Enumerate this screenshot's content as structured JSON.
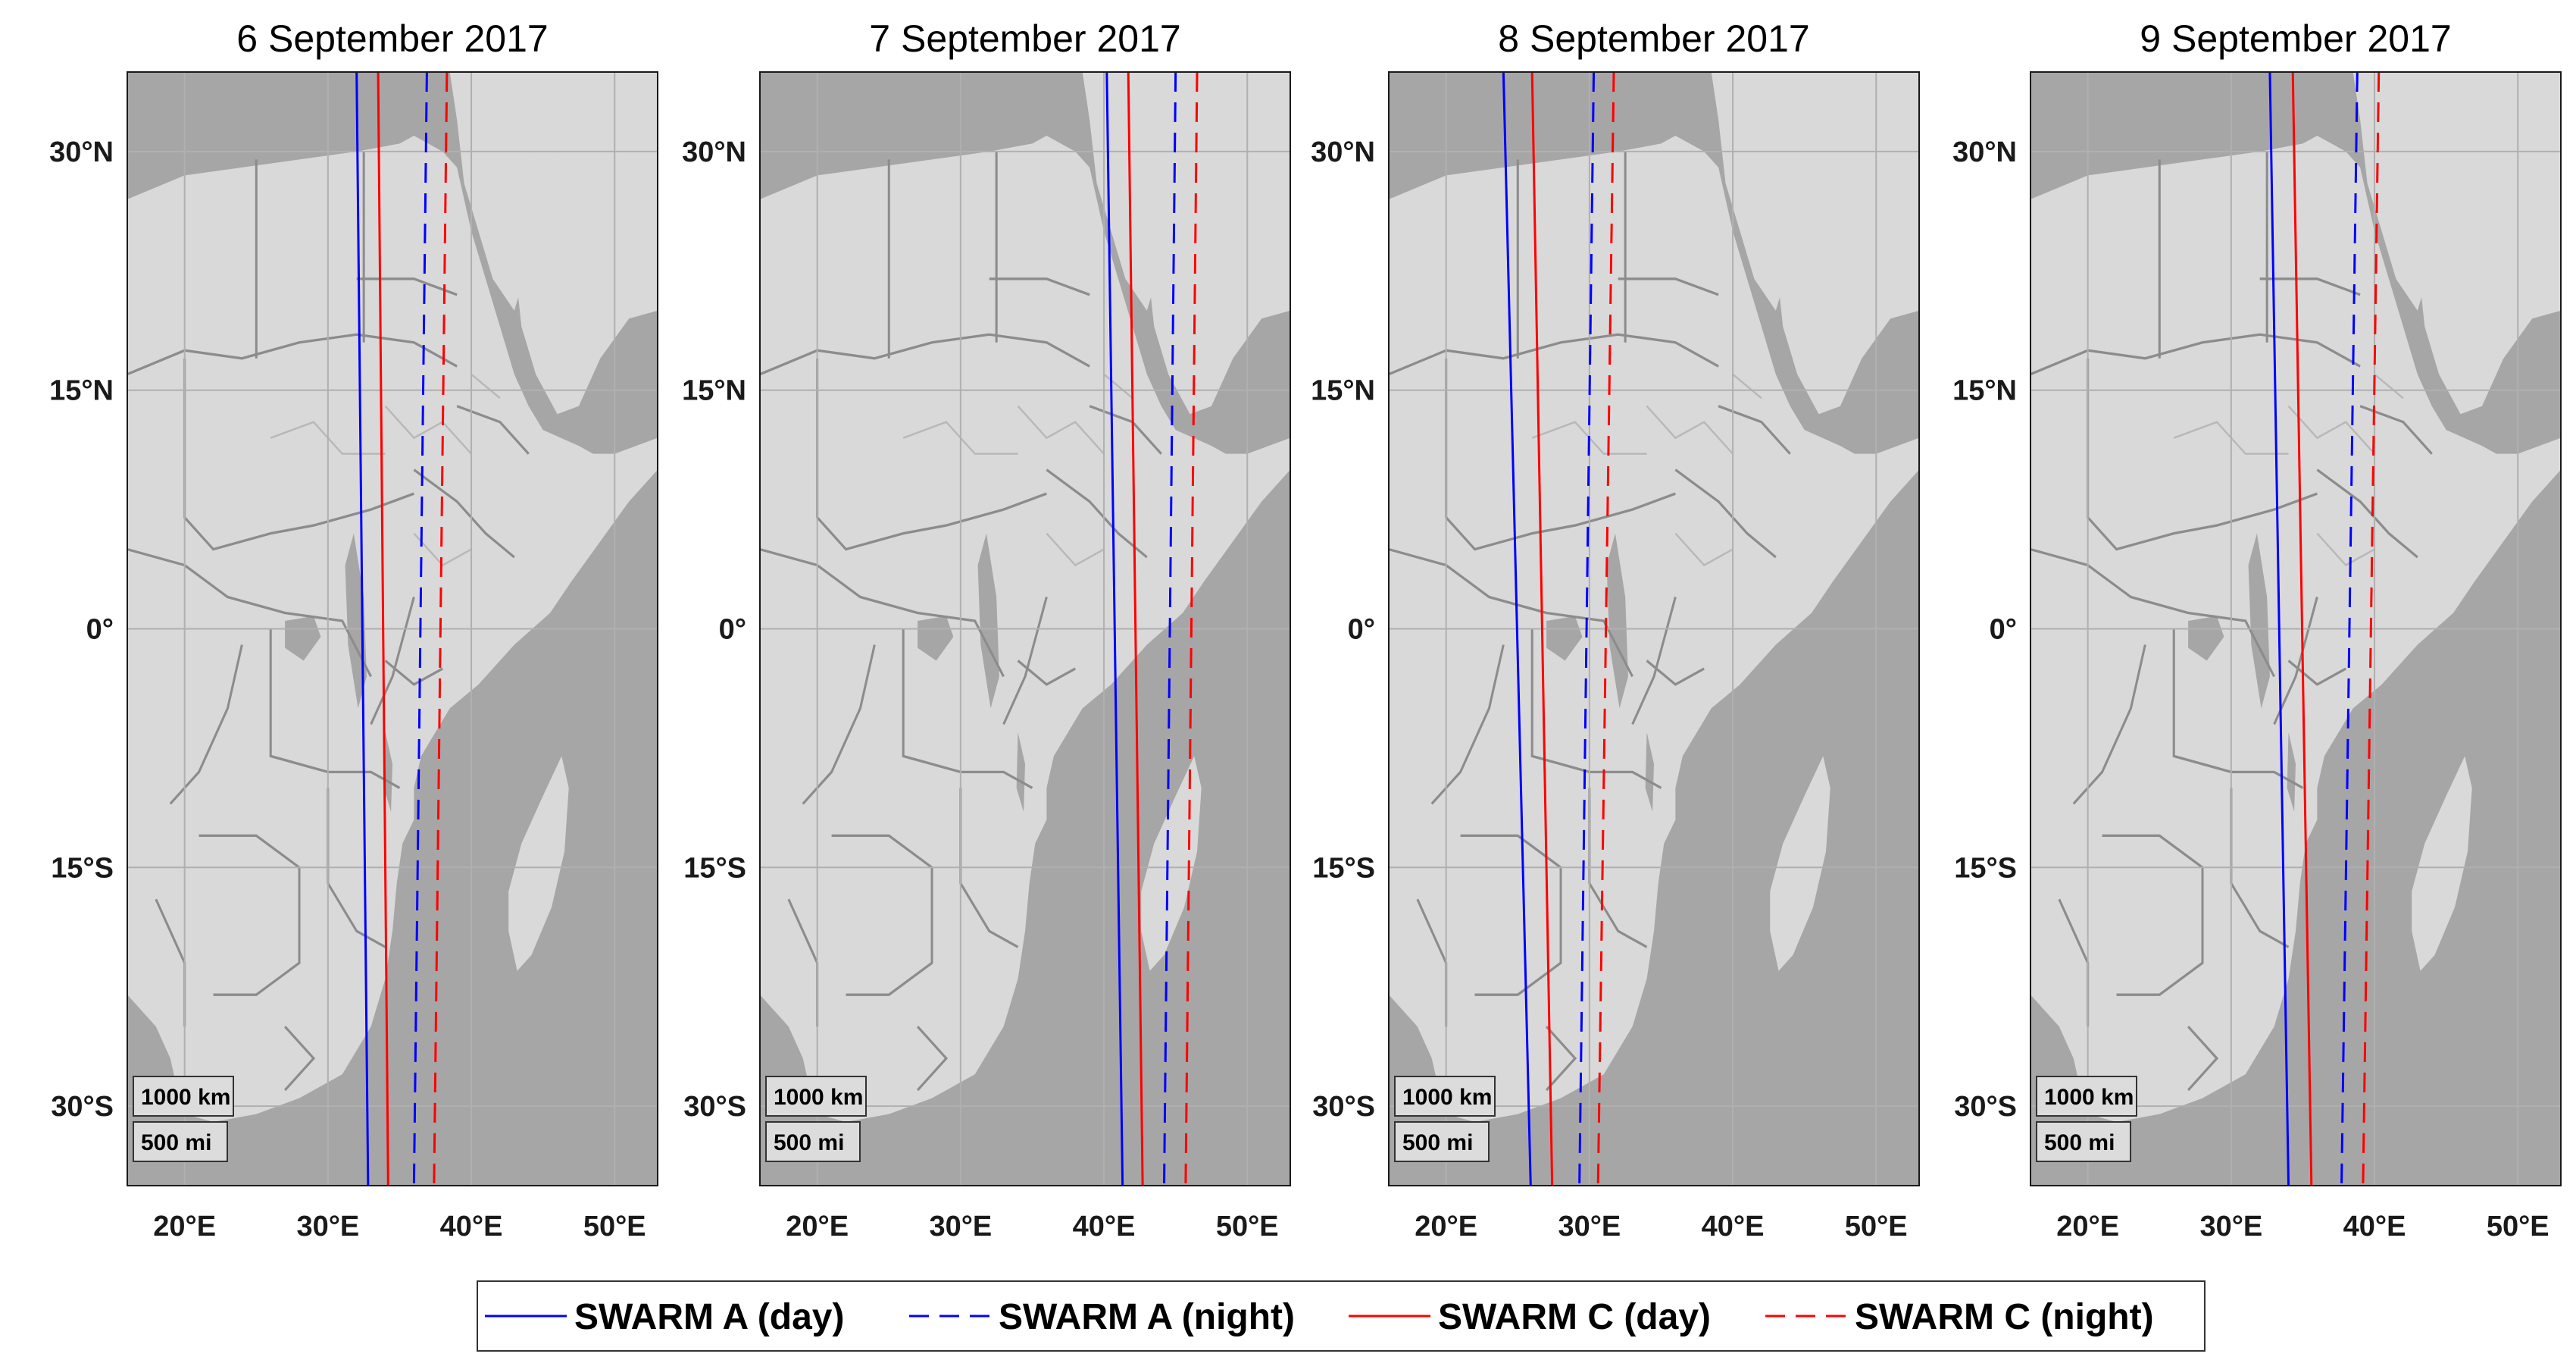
{
  "figure": {
    "panels": [
      {
        "title": "6 September 2017",
        "tracks": {
          "swarm_a_day": [
            [
              32.0,
              35
            ],
            [
              32.8,
              -35
            ]
          ],
          "swarm_a_night": [
            [
              36.9,
              35
            ],
            [
              36.0,
              -35
            ]
          ],
          "swarm_c_day": [
            [
              33.5,
              35
            ],
            [
              34.2,
              -35
            ]
          ],
          "swarm_c_night": [
            [
              38.3,
              35
            ],
            [
              37.4,
              -35
            ]
          ]
        }
      },
      {
        "title": "7 September 2017",
        "tracks": {
          "swarm_a_day": [
            [
              40.2,
              35
            ],
            [
              41.3,
              -35
            ]
          ],
          "swarm_a_night": [
            [
              45.0,
              35
            ],
            [
              44.2,
              -35
            ]
          ],
          "swarm_c_day": [
            [
              41.7,
              35
            ],
            [
              42.7,
              -35
            ]
          ],
          "swarm_c_night": [
            [
              46.5,
              35
            ],
            [
              45.7,
              -35
            ]
          ]
        }
      },
      {
        "title": "8 September 2017",
        "tracks": {
          "swarm_a_day": [
            [
              24.0,
              35
            ],
            [
              25.9,
              -35
            ]
          ],
          "swarm_a_night": [
            [
              30.3,
              35
            ],
            [
              29.3,
              -35
            ]
          ],
          "swarm_c_day": [
            [
              26.0,
              35
            ],
            [
              27.4,
              -35
            ]
          ],
          "swarm_c_night": [
            [
              31.7,
              35
            ],
            [
              30.6,
              -35
            ]
          ]
        }
      },
      {
        "title": "9 September 2017",
        "tracks": {
          "swarm_a_day": [
            [
              32.7,
              35
            ],
            [
              34.0,
              -35
            ]
          ],
          "swarm_a_night": [
            [
              38.8,
              35
            ],
            [
              37.7,
              -35
            ]
          ],
          "swarm_c_day": [
            [
              34.3,
              35
            ],
            [
              35.6,
              -35
            ]
          ],
          "swarm_c_night": [
            [
              40.3,
              35
            ],
            [
              39.2,
              -35
            ]
          ]
        }
      }
    ],
    "lon_ticks": [
      "20°E",
      "30°E",
      "40°E",
      "50°E"
    ],
    "lat_ticks": [
      "30°N",
      "15°N",
      "0°",
      "15°S",
      "30°S"
    ],
    "lon_range": [
      16,
      53
    ],
    "lat_range": [
      -35,
      35
    ],
    "scale_bar": {
      "km_label": "1000 km",
      "mi_label": "500 mi"
    },
    "legend": [
      {
        "key": "swarm_a_day",
        "label": "SWARM A (day)",
        "color": "#0000ff",
        "style": "solid"
      },
      {
        "key": "swarm_a_night",
        "label": "SWARM A (night)",
        "color": "#0000ff",
        "style": "dashed"
      },
      {
        "key": "swarm_c_day",
        "label": "SWARM C (day)",
        "color": "#ff0000",
        "style": "solid"
      },
      {
        "key": "swarm_c_night",
        "label": "SWARM C (night)",
        "color": "#ff0000",
        "style": "dashed"
      }
    ],
    "colors": {
      "land": "#d9d9d9",
      "ocean": "#a6a6a6",
      "border": "#8c8c8c",
      "grid": "#b0b0b0"
    }
  }
}
